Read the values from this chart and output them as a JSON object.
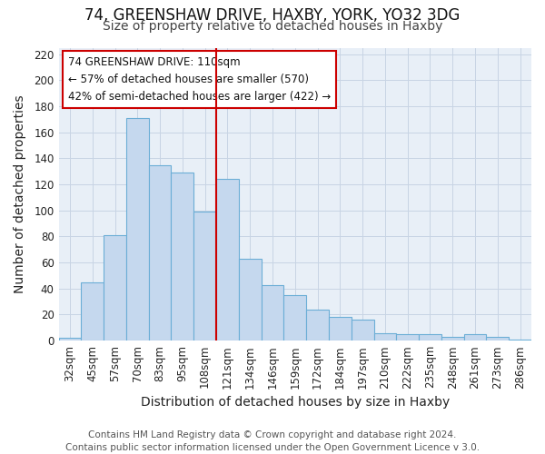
{
  "title1": "74, GREENSHAW DRIVE, HAXBY, YORK, YO32 3DG",
  "title2": "Size of property relative to detached houses in Haxby",
  "xlabel": "Distribution of detached houses by size in Haxby",
  "ylabel": "Number of detached properties",
  "categories": [
    "32sqm",
    "45sqm",
    "57sqm",
    "70sqm",
    "83sqm",
    "95sqm",
    "108sqm",
    "121sqm",
    "134sqm",
    "146sqm",
    "159sqm",
    "172sqm",
    "184sqm",
    "197sqm",
    "210sqm",
    "222sqm",
    "235sqm",
    "248sqm",
    "261sqm",
    "273sqm",
    "286sqm"
  ],
  "values": [
    2,
    45,
    81,
    171,
    135,
    129,
    99,
    124,
    63,
    43,
    35,
    24,
    18,
    16,
    6,
    5,
    5,
    3,
    5,
    3,
    1
  ],
  "bar_color": "#c5d8ee",
  "bar_edge_color": "#6baed6",
  "vline_x": 6.5,
  "vline_color": "#cc0000",
  "annotation_title": "74 GREENSHAW DRIVE: 110sqm",
  "annotation_line1": "← 57% of detached houses are smaller (570)",
  "annotation_line2": "42% of semi-detached houses are larger (422) →",
  "annotation_box_color": "#ffffff",
  "annotation_box_edge": "#cc0000",
  "ylim": [
    0,
    225
  ],
  "yticks": [
    0,
    20,
    40,
    60,
    80,
    100,
    120,
    140,
    160,
    180,
    200,
    220
  ],
  "footer1": "Contains HM Land Registry data © Crown copyright and database right 2024.",
  "footer2": "Contains public sector information licensed under the Open Government Licence v 3.0.",
  "bg_color": "#ffffff",
  "plot_bg_color": "#e8eff7",
  "grid_color": "#c8d4e4",
  "title1_fontsize": 12,
  "title2_fontsize": 10,
  "label_fontsize": 10,
  "tick_fontsize": 8.5,
  "footer_fontsize": 7.5
}
